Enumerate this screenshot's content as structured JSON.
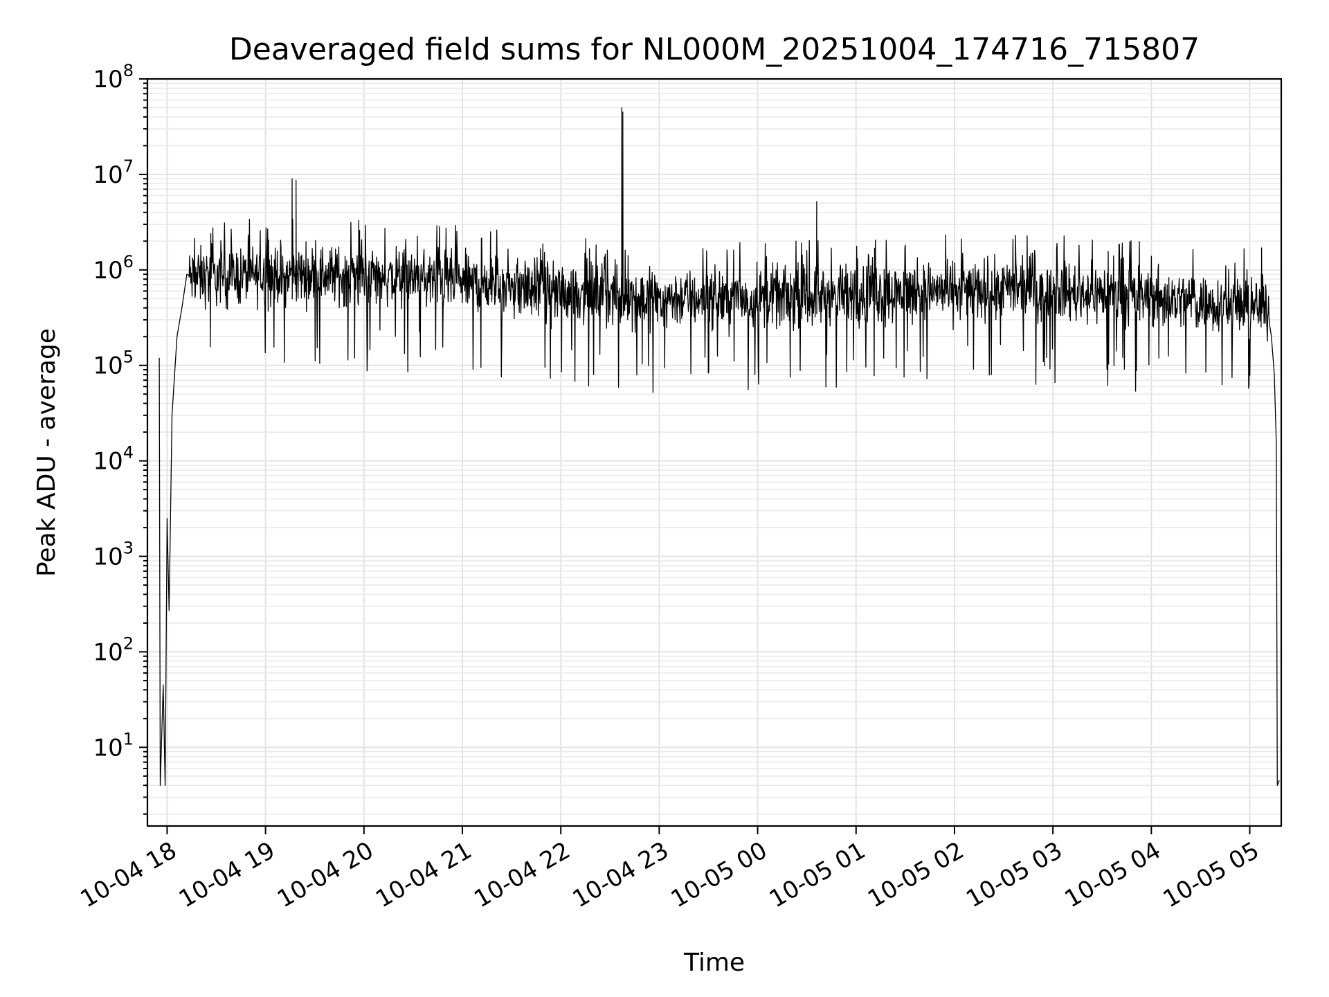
{
  "chart_data": {
    "type": "line",
    "title": "Deaveraged field sums for NL000M_20251004_174716_715807",
    "xlabel": "Time",
    "ylabel": "Peak ADU - average",
    "yscale": "log",
    "ylim": [
      1.5,
      100000000
    ],
    "xlim_hours_from_2025_10_04_18_00": [
      -0.2,
      11.32
    ],
    "grid": true,
    "x_ticks": [
      {
        "hours": 0,
        "label": "10-04 18"
      },
      {
        "hours": 1,
        "label": "10-04 19"
      },
      {
        "hours": 2,
        "label": "10-04 20"
      },
      {
        "hours": 3,
        "label": "10-04 21"
      },
      {
        "hours": 4,
        "label": "10-04 22"
      },
      {
        "hours": 5,
        "label": "10-04 23"
      },
      {
        "hours": 6,
        "label": "10-05 00"
      },
      {
        "hours": 7,
        "label": "10-05 01"
      },
      {
        "hours": 8,
        "label": "10-05 02"
      },
      {
        "hours": 9,
        "label": "10-05 03"
      },
      {
        "hours": 10,
        "label": "10-05 04"
      },
      {
        "hours": 11,
        "label": "10-05 05"
      }
    ],
    "y_ticks": [
      {
        "exp": 1,
        "base": "10",
        "sup": "1"
      },
      {
        "exp": 2,
        "base": "10",
        "sup": "2"
      },
      {
        "exp": 3,
        "base": "10",
        "sup": "3"
      },
      {
        "exp": 4,
        "base": "10",
        "sup": "4"
      },
      {
        "exp": 5,
        "base": "10",
        "sup": "5"
      },
      {
        "exp": 6,
        "base": "10",
        "sup": "6"
      },
      {
        "exp": 7,
        "base": "10",
        "sup": "7"
      },
      {
        "exp": 8,
        "base": "10",
        "sup": "8"
      }
    ],
    "series": [
      {
        "name": "field sums",
        "color": "#000000",
        "start_hours": -0.09,
        "end_hours": 11.29,
        "baseline_log10_start": 5.9,
        "baseline_log10_end": 5.65,
        "noise_log10_amplitude": 0.45,
        "key_points": [
          {
            "hours": -0.08,
            "value": 120000
          },
          {
            "hours": -0.07,
            "value": 4
          },
          {
            "hours": -0.04,
            "value": 45
          },
          {
            "hours": -0.02,
            "value": 4
          },
          {
            "hours": 0.0,
            "value": 2500
          },
          {
            "hours": 0.02,
            "value": 270
          },
          {
            "hours": 0.05,
            "value": 30000
          },
          {
            "hours": 0.1,
            "value": 200000
          },
          {
            "hours": 0.15,
            "value": 400000
          },
          {
            "hours": 0.2,
            "value": 900000
          },
          {
            "hours": 1.27,
            "value": 9000000
          },
          {
            "hours": 1.31,
            "value": 8700000
          },
          {
            "hours": 4.62,
            "value": 50000000
          },
          {
            "hours": 4.63,
            "value": 45000000
          },
          {
            "hours": 6.6,
            "value": 5200000
          },
          {
            "hours": 11.12,
            "value": 1700000
          },
          {
            "hours": 11.22,
            "value": 200000
          },
          {
            "hours": 11.25,
            "value": 80000
          },
          {
            "hours": 11.27,
            "value": 15000
          },
          {
            "hours": 11.28,
            "value": 4
          },
          {
            "hours": 11.3,
            "value": 4.5
          }
        ]
      }
    ]
  }
}
